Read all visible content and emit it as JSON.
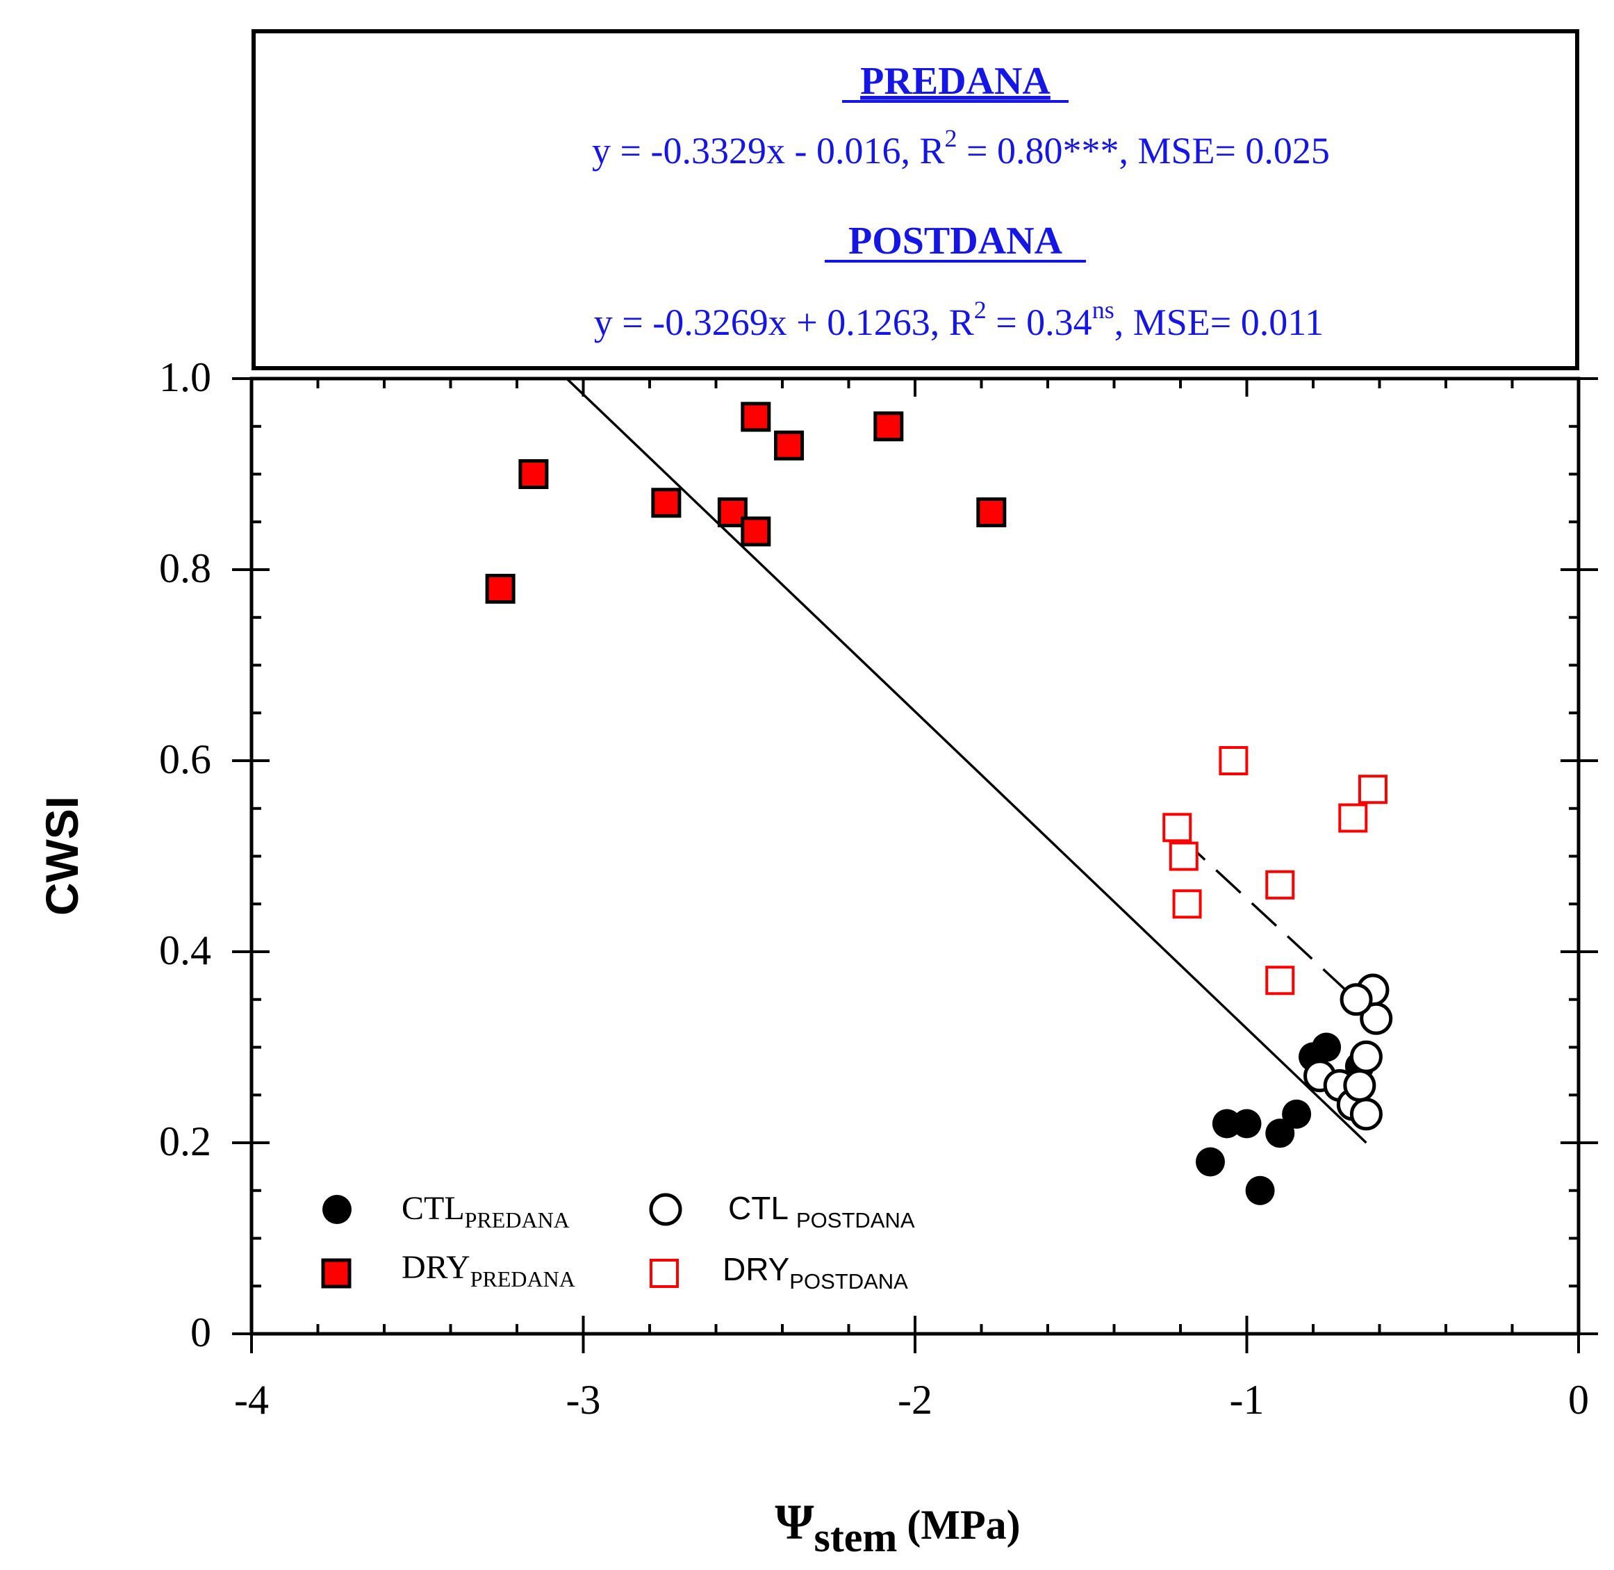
{
  "chart_data": {
    "type": "scatter",
    "title": "",
    "xlabel": "Ψ",
    "xlabel_sub": "stem",
    "xlabel_unit": "(MPa)",
    "ylabel": "CWSI",
    "xlim": [
      -4,
      0
    ],
    "ylim": [
      0,
      1.0
    ],
    "xticks": [
      -4,
      -3,
      -2,
      -1,
      0
    ],
    "xtick_labels": [
      "-4",
      "-3",
      "-2",
      "-1",
      "0"
    ],
    "yticks": [
      0,
      0.2,
      0.4,
      0.6,
      0.8,
      1.0
    ],
    "ytick_labels": [
      "0",
      "0.2",
      "0.4",
      "0.6",
      "0.8",
      "1.0"
    ],
    "annotation": {
      "predana_title": "PREDANA",
      "predana_eq": "y = -0.3329x - 0.016, R",
      "predana_r2_sup": "2",
      "predana_r2_rest": " = 0.80***, MSE= 0.025",
      "postdana_title": "POSTDANA",
      "postdana_eq": "y = -0.3269x + 0.1263, R",
      "postdana_r2_sup": "2",
      "postdana_r2_mid": " = 0.34",
      "postdana_ns_sup": "ns",
      "postdana_r2_rest": ", MSE= 0.011",
      "color": "#1515e6"
    },
    "series": [
      {
        "name": "CTL",
        "sub": "PREDANA",
        "marker": "filled-circle",
        "color": "#000000",
        "x": [
          -1.11,
          -1.06,
          -1.0,
          -0.96,
          -0.9,
          -0.85,
          -0.8,
          -0.76,
          -0.66
        ],
        "y": [
          0.18,
          0.22,
          0.22,
          0.15,
          0.21,
          0.23,
          0.29,
          0.3,
          0.28
        ]
      },
      {
        "name": "CTL ",
        "sub": "POSTDANA",
        "marker": "open-circle",
        "color": "#000000",
        "x": [
          -0.78,
          -0.72,
          -0.68,
          -0.66,
          -0.64,
          -0.62,
          -0.61,
          -0.64,
          -0.67
        ],
        "y": [
          0.27,
          0.26,
          0.24,
          0.26,
          0.23,
          0.36,
          0.33,
          0.29,
          0.35
        ]
      },
      {
        "name": "DRY",
        "sub": "PREDANA",
        "marker": "filled-square",
        "color": "#ff0000",
        "x": [
          -3.25,
          -3.15,
          -2.75,
          -2.55,
          -2.48,
          -2.48,
          -2.38,
          -2.08,
          -1.77
        ],
        "y": [
          0.78,
          0.9,
          0.87,
          0.86,
          0.84,
          0.96,
          0.93,
          0.95,
          0.86
        ]
      },
      {
        "name": "DRY",
        "sub": "POSTDANA",
        "marker": "open-square",
        "color": "#ff0000",
        "x": [
          -1.21,
          -1.19,
          -1.18,
          -1.04,
          -0.9,
          -0.9,
          -0.68,
          -0.62
        ],
        "y": [
          0.53,
          0.5,
          0.45,
          0.6,
          0.47,
          0.37,
          0.54,
          0.57
        ]
      }
    ],
    "fit_lines": [
      {
        "name": "PREDANA fit",
        "style": "solid",
        "x": [
          -3.05,
          -0.64
        ],
        "y": [
          1.0,
          0.2
        ]
      },
      {
        "name": "POSTDANA fit",
        "style": "dashed",
        "x": [
          -1.2,
          -0.64
        ],
        "y": [
          0.52,
          0.34
        ]
      }
    ]
  }
}
